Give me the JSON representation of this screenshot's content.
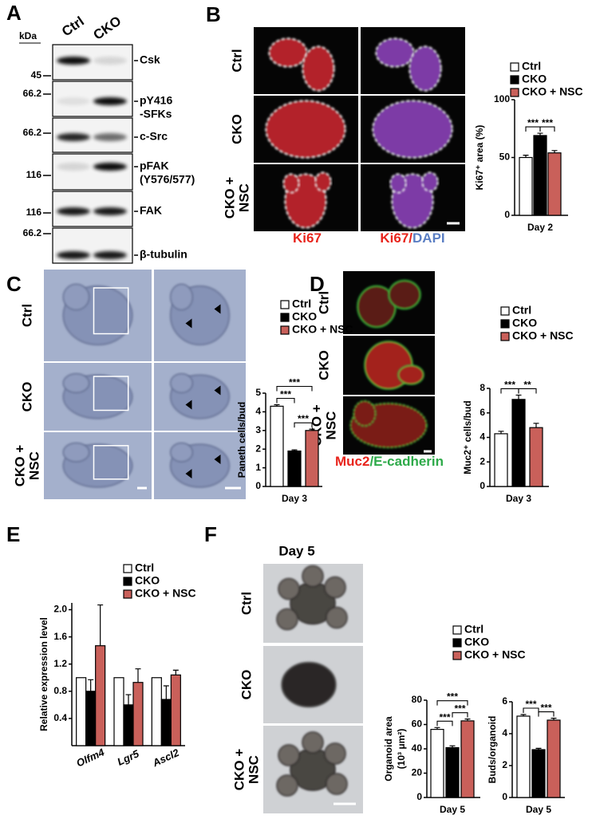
{
  "panel_labels": [
    "A",
    "B",
    "C",
    "D",
    "E",
    "F"
  ],
  "blot": {
    "unit": "kDa",
    "lanes": [
      "Ctrl",
      "CKO"
    ],
    "rows": [
      {
        "marker": "45",
        "label": [
          "Csk"
        ]
      },
      {
        "marker": "66.2",
        "label": [
          "pY416",
          "-SFKs"
        ]
      },
      {
        "marker": "66.2",
        "label": [
          "c-Src"
        ]
      },
      {
        "marker": "116",
        "label": [
          "pFAK",
          "(Y576/577)"
        ]
      },
      {
        "marker": "116",
        "label": [
          "FAK"
        ]
      },
      {
        "marker": "66.2",
        "label": [
          "β-tubulin"
        ]
      }
    ]
  },
  "images": {
    "B": {
      "rows": [
        [
          "Ctrl"
        ],
        [
          "CKO"
        ],
        [
          "CKO +",
          "NSC"
        ]
      ],
      "columns": [
        [
          {
            "text": "Ki67",
            "color": "#e8241c"
          }
        ],
        [
          {
            "text": "Ki67",
            "color": "#e8241c"
          },
          {
            "text": "/",
            "color": "#e8241c"
          },
          {
            "text": "DAPI",
            "color": "#5b7fc4"
          }
        ]
      ]
    },
    "C": {
      "rows": [
        [
          "Ctrl"
        ],
        [
          "CKO"
        ],
        [
          "CKO +",
          "NSC"
        ]
      ]
    },
    "D": {
      "rows": [
        [
          "Ctrl"
        ],
        [
          "CKO"
        ],
        [
          "CKO +",
          "NSC"
        ]
      ],
      "columns": [
        [
          {
            "text": "Muc2",
            "color": "#e8241c"
          },
          {
            "text": "/",
            "color": "#2eaa4a"
          },
          {
            "text": "E-cadherin",
            "color": "#2eaa4a"
          }
        ]
      ]
    },
    "F": {
      "title": "Day 5",
      "rows": [
        [
          "Ctrl"
        ],
        [
          "CKO"
        ],
        [
          "CKO +",
          "NSC"
        ]
      ]
    }
  },
  "chart_data": [
    {
      "type": "bar",
      "categories": [
        "Day 2"
      ],
      "ylabel": "Ki67⁺ area (%)",
      "ylim": [
        0,
        100
      ],
      "yticks": [
        0,
        50,
        100
      ],
      "legend": true,
      "series": [
        {
          "name": "Ctrl",
          "color": "#ffffff",
          "values": [
            50
          ],
          "errors": [
            2
          ]
        },
        {
          "name": "CKO",
          "color": "#000000",
          "values": [
            69
          ],
          "errors": [
            2
          ]
        },
        {
          "name": "CKO + NSC",
          "color": "#c9605a",
          "values": [
            54
          ],
          "errors": [
            2
          ]
        }
      ],
      "significance": [
        {
          "text": "***",
          "between": [
            "Ctrl",
            "CKO"
          ]
        },
        {
          "text": "***",
          "between": [
            "CKO",
            "CKO + NSC"
          ]
        }
      ]
    },
    {
      "type": "bar",
      "categories": [
        "Day 3"
      ],
      "ylabel": "Paneth cells/bud",
      "ylim": [
        0,
        5
      ],
      "yticks": [
        0,
        1,
        2,
        3,
        4,
        5
      ],
      "legend": true,
      "series": [
        {
          "name": "Ctrl",
          "color": "#ffffff",
          "values": [
            4.3
          ],
          "errors": [
            0.08
          ]
        },
        {
          "name": "CKO",
          "color": "#000000",
          "values": [
            1.9
          ],
          "errors": [
            0.06
          ]
        },
        {
          "name": "CKO + NSC",
          "color": "#c9605a",
          "values": [
            3.0
          ],
          "errors": [
            0.07
          ]
        }
      ],
      "significance": [
        {
          "text": "***",
          "between": [
            "CKO",
            "CKO + NSC"
          ]
        },
        {
          "text": "***",
          "between": [
            "Ctrl",
            "CKO"
          ]
        },
        {
          "text": "***",
          "between": [
            "Ctrl",
            "CKO + NSC"
          ]
        }
      ]
    },
    {
      "type": "bar",
      "categories": [
        "Day 3"
      ],
      "ylabel": "Muc2⁺ cells/bud",
      "ylim": [
        0,
        8
      ],
      "yticks": [
        0,
        2,
        4,
        6,
        8
      ],
      "legend": true,
      "series": [
        {
          "name": "Ctrl",
          "color": "#ffffff",
          "values": [
            4.3
          ],
          "errors": [
            0.2
          ]
        },
        {
          "name": "CKO",
          "color": "#000000",
          "values": [
            7.1
          ],
          "errors": [
            0.35
          ]
        },
        {
          "name": "CKO + NSC",
          "color": "#c9605a",
          "values": [
            4.8
          ],
          "errors": [
            0.35
          ]
        }
      ],
      "significance": [
        {
          "text": "**",
          "between": [
            "CKO",
            "CKO + NSC"
          ]
        },
        {
          "text": "***",
          "between": [
            "Ctrl",
            "CKO"
          ]
        }
      ]
    },
    {
      "type": "bar",
      "categories": [
        "Olfm4",
        "Lgr5",
        "Ascl2"
      ],
      "ylabel": "Relative expression level",
      "ylim": [
        0,
        2.1
      ],
      "yticks": [
        0.4,
        0.8,
        1.2,
        1.6,
        {
          "value": 2,
          "label": "2.0"
        }
      ],
      "legend": true,
      "series": [
        {
          "name": "Ctrl",
          "color": "#ffffff",
          "values": [
            1.0,
            1.0,
            1.0
          ],
          "errors": [
            null,
            null,
            null
          ]
        },
        {
          "name": "CKO",
          "color": "#000000",
          "values": [
            0.8,
            0.6,
            0.68
          ],
          "errors": [
            0.17,
            0.15,
            0.2
          ]
        },
        {
          "name": "CKO + NSC",
          "color": "#c9605a",
          "values": [
            1.47,
            0.93,
            1.04
          ],
          "errors": [
            0.6,
            0.2,
            0.07
          ]
        }
      ],
      "significance": []
    },
    {
      "type": "bar",
      "categories": [
        "Day 5"
      ],
      "ylabel": [
        "Organoid area",
        "(10³ μm²)"
      ],
      "ylim": [
        0,
        80
      ],
      "yticks": [
        0,
        20,
        40,
        60,
        80
      ],
      "legend": true,
      "series": [
        {
          "name": "Ctrl",
          "color": "#ffffff",
          "values": [
            56
          ],
          "errors": [
            1.5
          ]
        },
        {
          "name": "CKO",
          "color": "#000000",
          "values": [
            41
          ],
          "errors": [
            1.5
          ]
        },
        {
          "name": "CKO + NSC",
          "color": "#c9605a",
          "values": [
            63
          ],
          "errors": [
            1.5
          ]
        }
      ],
      "significance": [
        {
          "text": "***",
          "between": [
            "Ctrl",
            "CKO"
          ]
        },
        {
          "text": "***",
          "between": [
            "CKO",
            "CKO + NSC"
          ]
        },
        {
          "text": "***",
          "between": [
            "Ctrl",
            "CKO + NSC"
          ]
        }
      ]
    },
    {
      "type": "bar",
      "categories": [
        "Day 5"
      ],
      "ylabel": "Buds/organoid",
      "ylim": [
        0,
        6
      ],
      "yticks": [
        0,
        2,
        4,
        6
      ],
      "legend": false,
      "series": [
        {
          "name": "Ctrl",
          "color": "#ffffff",
          "values": [
            5.1
          ],
          "errors": [
            0.1
          ]
        },
        {
          "name": "CKO",
          "color": "#000000",
          "values": [
            3.0
          ],
          "errors": [
            0.08
          ]
        },
        {
          "name": "CKO + NSC",
          "color": "#c9605a",
          "values": [
            4.85
          ],
          "errors": [
            0.12
          ]
        }
      ],
      "significance": [
        {
          "text": "***",
          "between": [
            "CKO",
            "CKO + NSC"
          ]
        },
        {
          "text": "***",
          "between": [
            "Ctrl",
            "CKO"
          ]
        }
      ]
    }
  ]
}
